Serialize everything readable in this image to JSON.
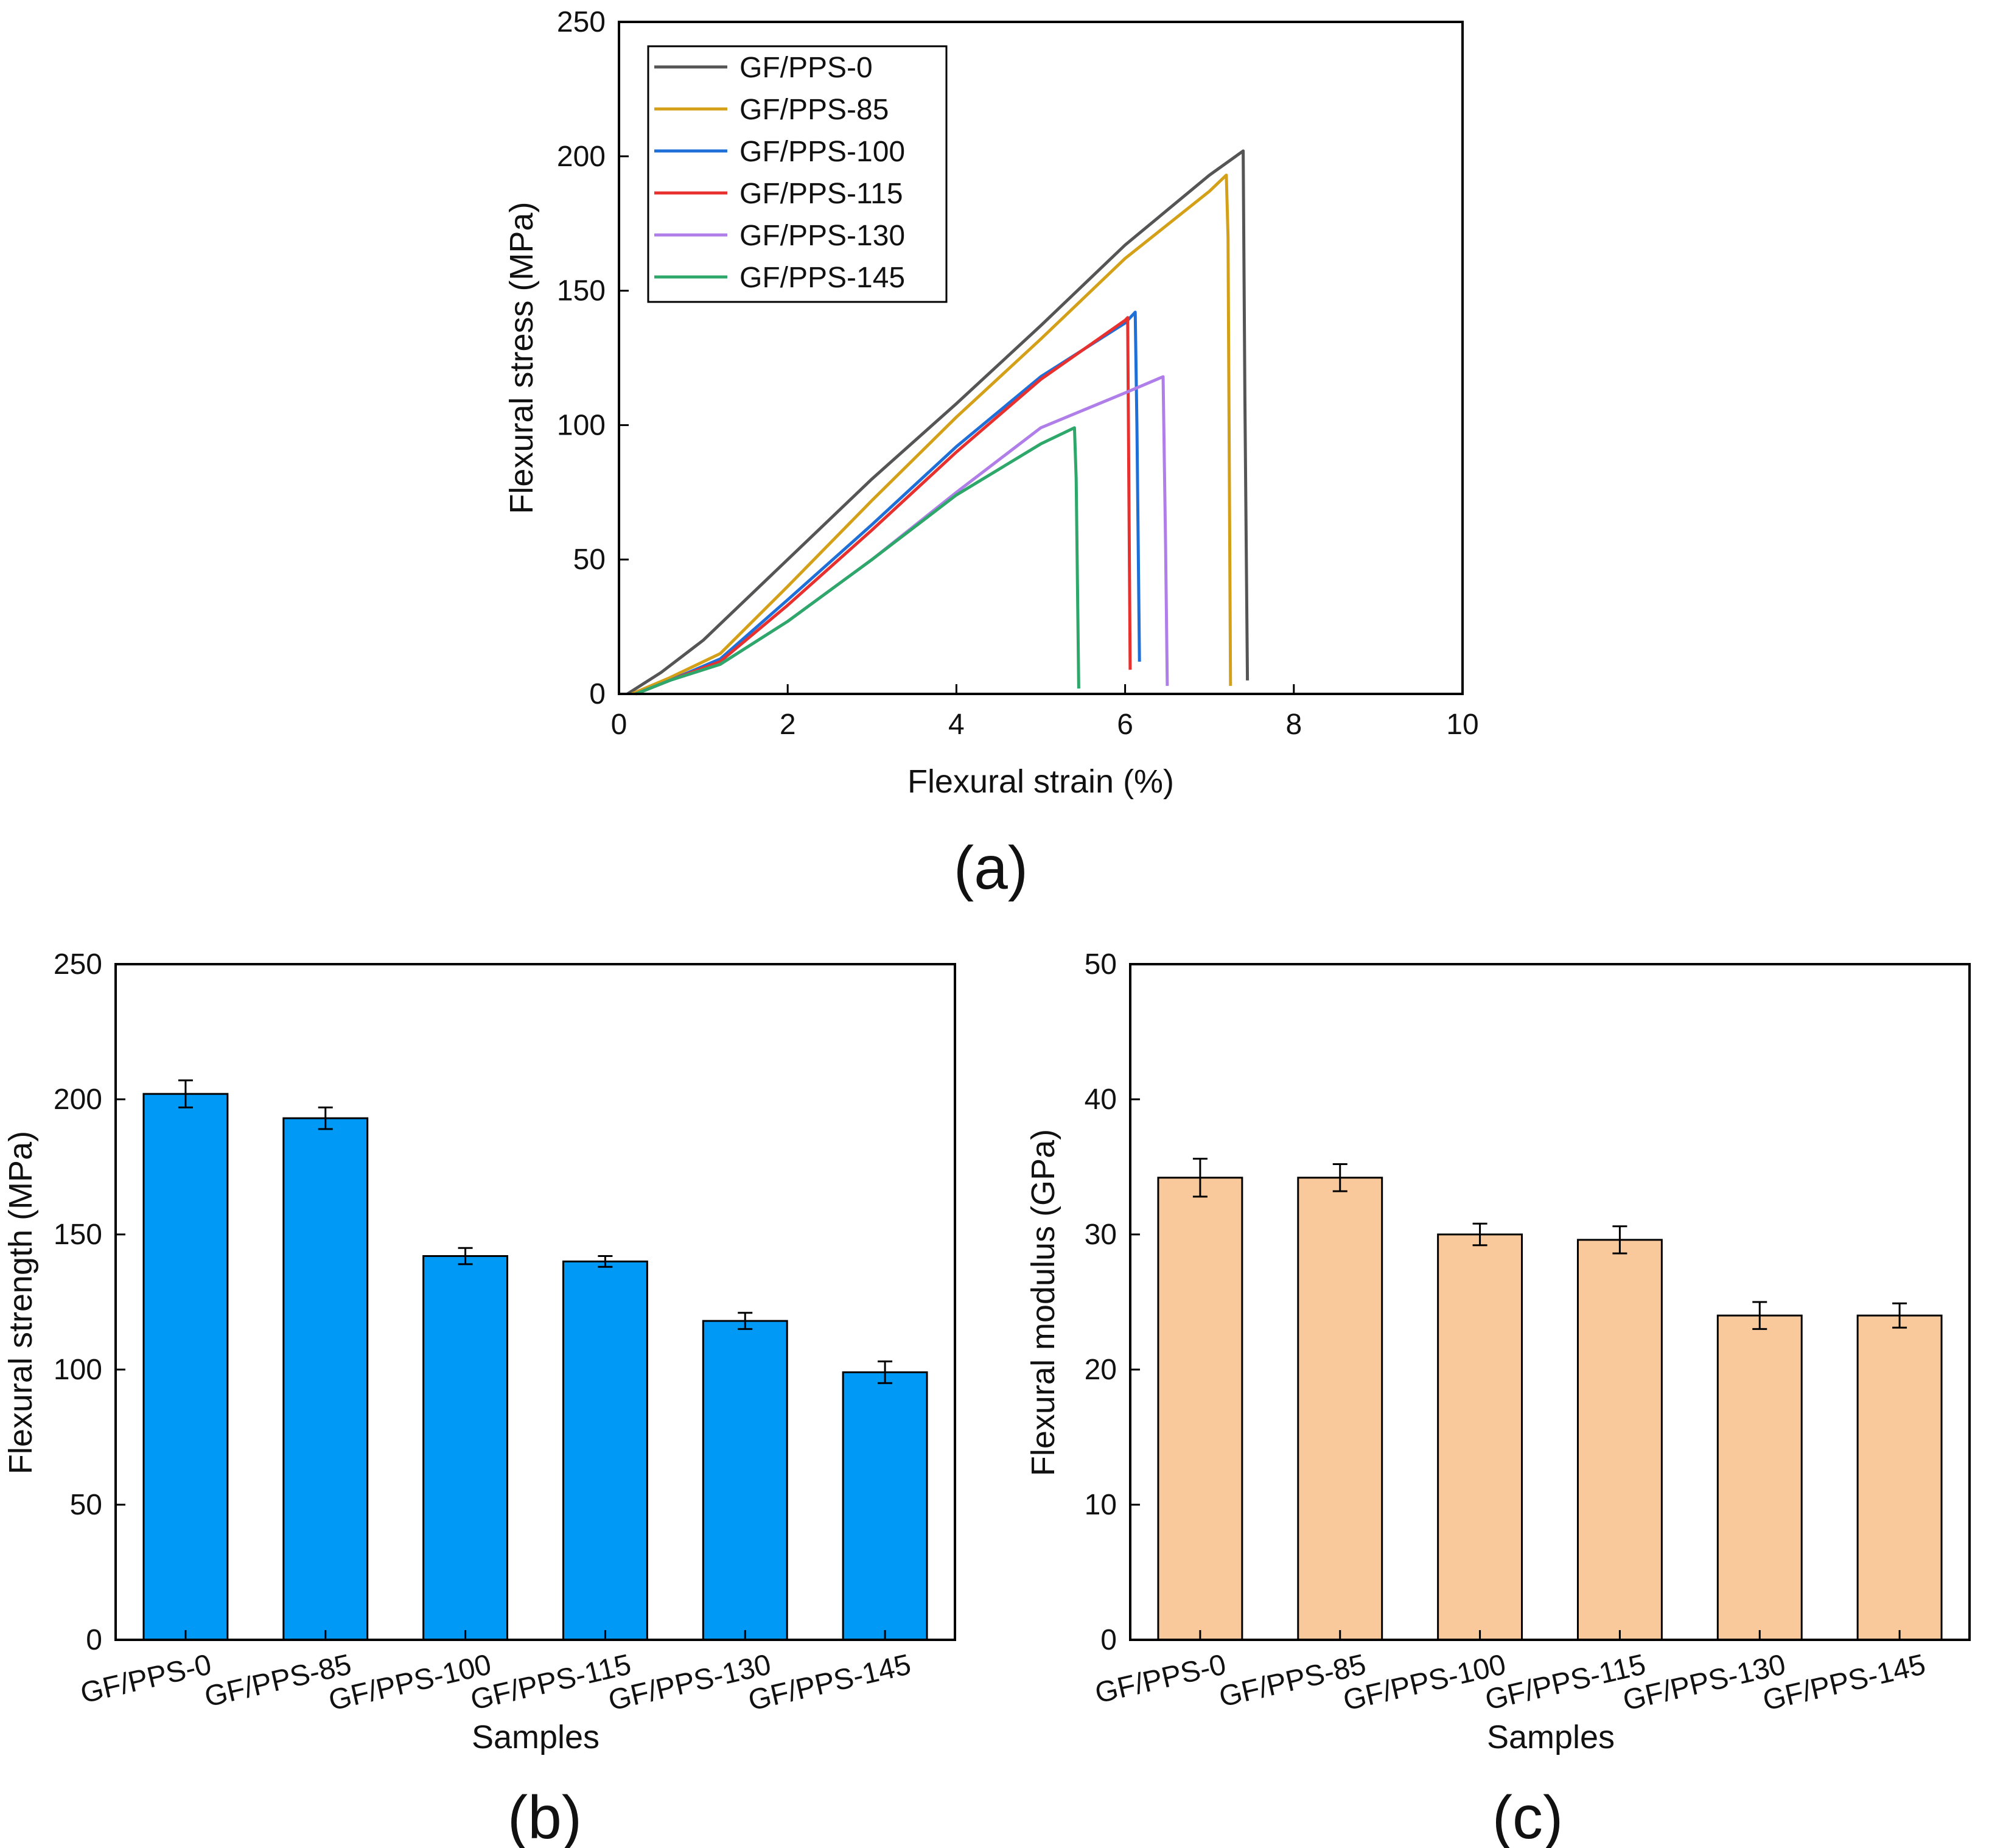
{
  "chart_data": [
    {
      "id": "a",
      "type": "line",
      "panel_label": "(a)",
      "xlabel": "Flexural strain (%)",
      "ylabel": "Flexural stress (MPa)",
      "xlim": [
        0,
        10
      ],
      "ylim": [
        0,
        250
      ],
      "xticks": [
        0,
        2,
        4,
        6,
        8,
        10
      ],
      "yticks": [
        0,
        50,
        100,
        150,
        200,
        250
      ],
      "legend_position": "top-left",
      "series": [
        {
          "name": "GF/PPS-0",
          "color": "#555555",
          "x": [
            0.1,
            0.5,
            1.0,
            1.5,
            2.0,
            3.0,
            4.0,
            5.0,
            6.0,
            7.0,
            7.4,
            7.42,
            7.45
          ],
          "y": [
            0,
            8,
            20,
            35,
            50,
            80,
            108,
            137,
            167,
            193,
            202,
            110,
            5
          ]
        },
        {
          "name": "GF/PPS-85",
          "color": "#D4A017",
          "x": [
            0.15,
            0.6,
            1.2,
            2.0,
            3.0,
            4.0,
            5.0,
            6.0,
            7.0,
            7.2,
            7.22,
            7.25
          ],
          "y": [
            0,
            6,
            15,
            40,
            72,
            103,
            132,
            162,
            187,
            193,
            170,
            3
          ]
        },
        {
          "name": "GF/PPS-100",
          "color": "#1F6FD8",
          "x": [
            0.2,
            0.6,
            1.2,
            2.0,
            3.0,
            4.0,
            5.0,
            6.0,
            6.12,
            6.14,
            6.17
          ],
          "y": [
            0,
            5,
            13,
            35,
            63,
            92,
            118,
            138,
            142,
            100,
            12
          ]
        },
        {
          "name": "GF/PPS-115",
          "color": "#E8302E",
          "x": [
            0.2,
            0.6,
            1.2,
            2.0,
            3.0,
            4.0,
            5.0,
            6.0,
            6.03,
            6.06
          ],
          "y": [
            0,
            5,
            12,
            33,
            61,
            90,
            117,
            139,
            140,
            9
          ]
        },
        {
          "name": "GF/PPS-130",
          "color": "#B07EE8",
          "x": [
            0.2,
            0.6,
            1.2,
            2.0,
            3.0,
            4.0,
            5.0,
            6.0,
            6.45,
            6.48,
            6.5
          ],
          "y": [
            0,
            5,
            11,
            27,
            50,
            75,
            99,
            112,
            118,
            55,
            3
          ]
        },
        {
          "name": "GF/PPS-145",
          "color": "#2EA86A",
          "x": [
            0.2,
            0.6,
            1.2,
            2.0,
            3.0,
            4.0,
            5.0,
            5.4,
            5.42,
            5.45
          ],
          "y": [
            0,
            5,
            11,
            27,
            50,
            74,
            93,
            99,
            80,
            2
          ]
        }
      ]
    },
    {
      "id": "b",
      "type": "bar",
      "panel_label": "(b)",
      "xlabel": "Samples",
      "ylabel": "Flexural strength (MPa)",
      "ylim": [
        0,
        250
      ],
      "yticks": [
        0,
        50,
        100,
        150,
        200,
        250
      ],
      "bar_color": "#0099F5",
      "categories": [
        "GF/PPS-0",
        "GF/PPS-85",
        "GF/PPS-100",
        "GF/PPS-115",
        "GF/PPS-130",
        "GF/PPS-145"
      ],
      "values": [
        202,
        193,
        142,
        140,
        118,
        99
      ],
      "errors": [
        5,
        4,
        3,
        2,
        3,
        4
      ]
    },
    {
      "id": "c",
      "type": "bar",
      "panel_label": "(c)",
      "xlabel": "Samples",
      "ylabel": "Flexural modulus (GPa)",
      "ylim": [
        0,
        50
      ],
      "yticks": [
        0,
        10,
        20,
        30,
        40,
        50
      ],
      "bar_color": "#F9C89B",
      "categories": [
        "GF/PPS-0",
        "GF/PPS-85",
        "GF/PPS-100",
        "GF/PPS-115",
        "GF/PPS-130",
        "GF/PPS-145"
      ],
      "values": [
        34.2,
        34.2,
        30.0,
        29.6,
        24.0,
        24.0
      ],
      "errors": [
        1.4,
        1.0,
        0.8,
        1.0,
        1.0,
        0.9
      ]
    }
  ]
}
